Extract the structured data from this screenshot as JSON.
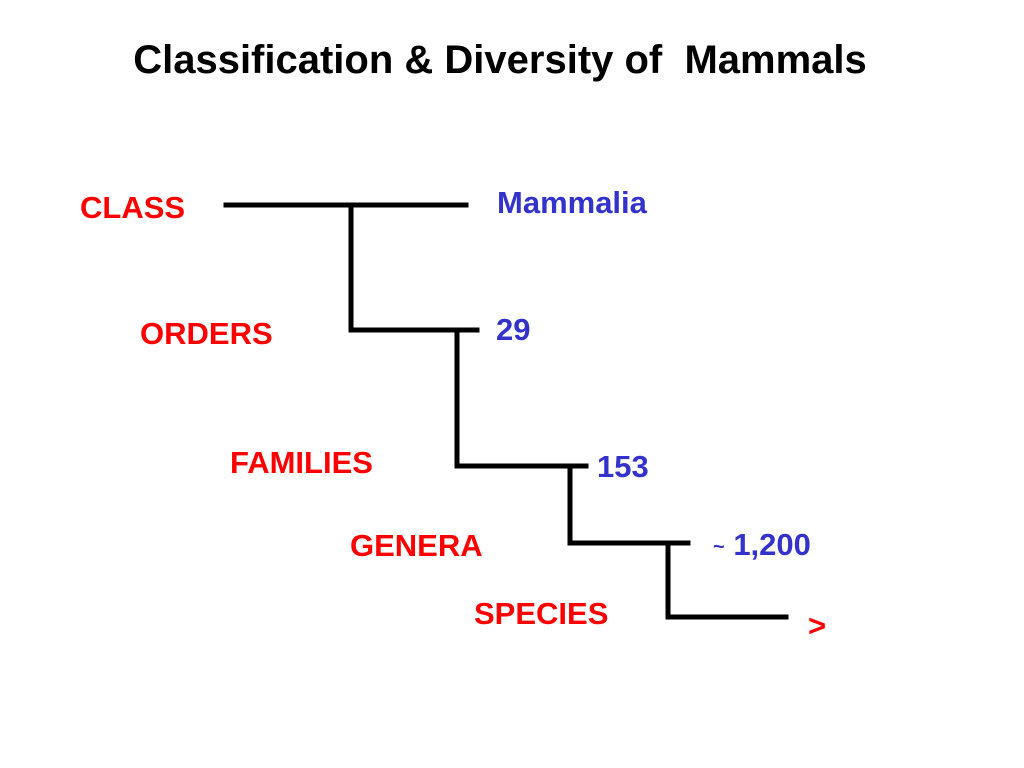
{
  "title": "Classification & Diversity of  Mammals",
  "ranks": {
    "class": "CLASS",
    "orders": "ORDERS",
    "families": "FAMILIES",
    "genera": "GENERA",
    "species": "SPECIES"
  },
  "counts": {
    "class": "Mammalia",
    "orders": "29",
    "families": "153",
    "genera_prefix": "~",
    "genera": "1,200",
    "species": ">"
  },
  "colors": {
    "rank_labels": "#ff0000",
    "counts": "#3333cc",
    "lines": "#000000",
    "title": "#000000"
  }
}
